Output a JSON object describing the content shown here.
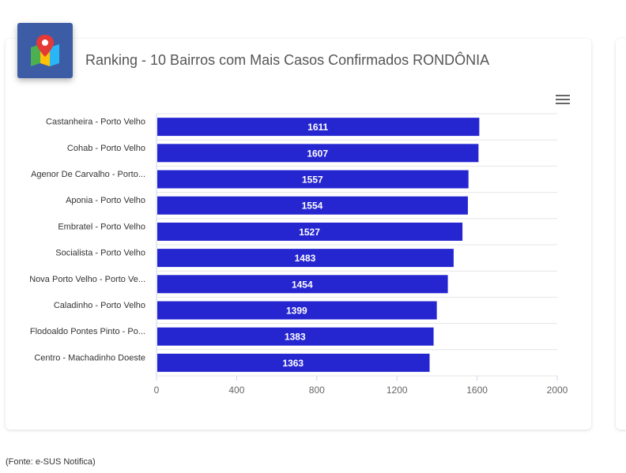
{
  "header": {
    "title": "Ranking - 10 Bairros com Mais Casos Confirmados RONDÔNIA",
    "icon": "map-pin-icon"
  },
  "footer": {
    "source": "(Fonte: e-SUS Notifica)"
  },
  "colors": {
    "bar": "#2626d1",
    "icon_bg": "#3d5ca6"
  },
  "chart_data": {
    "type": "bar",
    "orientation": "horizontal",
    "categories": [
      "Castanheira - Porto Velho",
      "Cohab - Porto Velho",
      "Agenor De Carvalho - Porto...",
      "Aponia - Porto Velho",
      "Embratel - Porto Velho",
      "Socialista - Porto Velho",
      "Nova Porto Velho - Porto Ve...",
      "Caladinho - Porto Velho",
      "Flodoaldo Pontes Pinto - Po...",
      "Centro - Machadinho Doeste"
    ],
    "values": [
      1611,
      1607,
      1557,
      1554,
      1527,
      1483,
      1454,
      1399,
      1383,
      1363
    ],
    "xlim": [
      0,
      2000
    ],
    "xticks": [
      0,
      400,
      800,
      1200,
      1600,
      2000
    ],
    "grid": true,
    "legend": "none",
    "data_labels": true
  }
}
